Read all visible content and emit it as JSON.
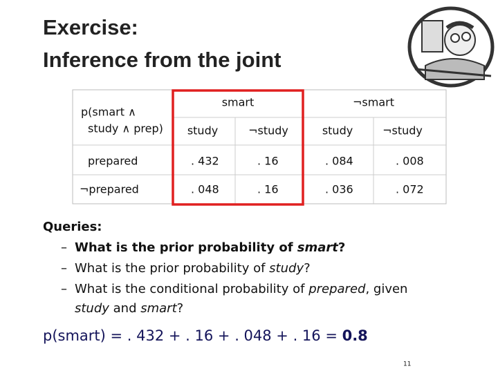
{
  "title": [
    "Exercise:",
    "Inference from the joint"
  ],
  "table": {
    "corner": [
      "p(smart ∧",
      "study ∧ prep)"
    ],
    "groups": [
      "smart",
      "¬smart"
    ],
    "columns": [
      "study",
      "¬study",
      "study",
      "¬study"
    ],
    "rows": [
      [
        "prepared",
        ". 432",
        ". 16",
        ". 084",
        ". 008"
      ],
      [
        "¬prepared",
        ". 048",
        ". 16",
        ". 036",
        ". 072"
      ]
    ]
  },
  "queries": {
    "heading": "Queries:",
    "items": [
      [
        "What is the prior probability of ",
        "smart",
        "?"
      ],
      [
        "What is the prior probability of ",
        "study",
        "?"
      ],
      [
        "What is the conditional probability of ",
        "prepared",
        ", given",
        "study",
        " and ",
        "smart",
        "?"
      ]
    ]
  },
  "formula": [
    "p(smart) = . 432 + . 16 + . 048 + . 16 = ",
    "0.8"
  ],
  "page_number": "11"
}
